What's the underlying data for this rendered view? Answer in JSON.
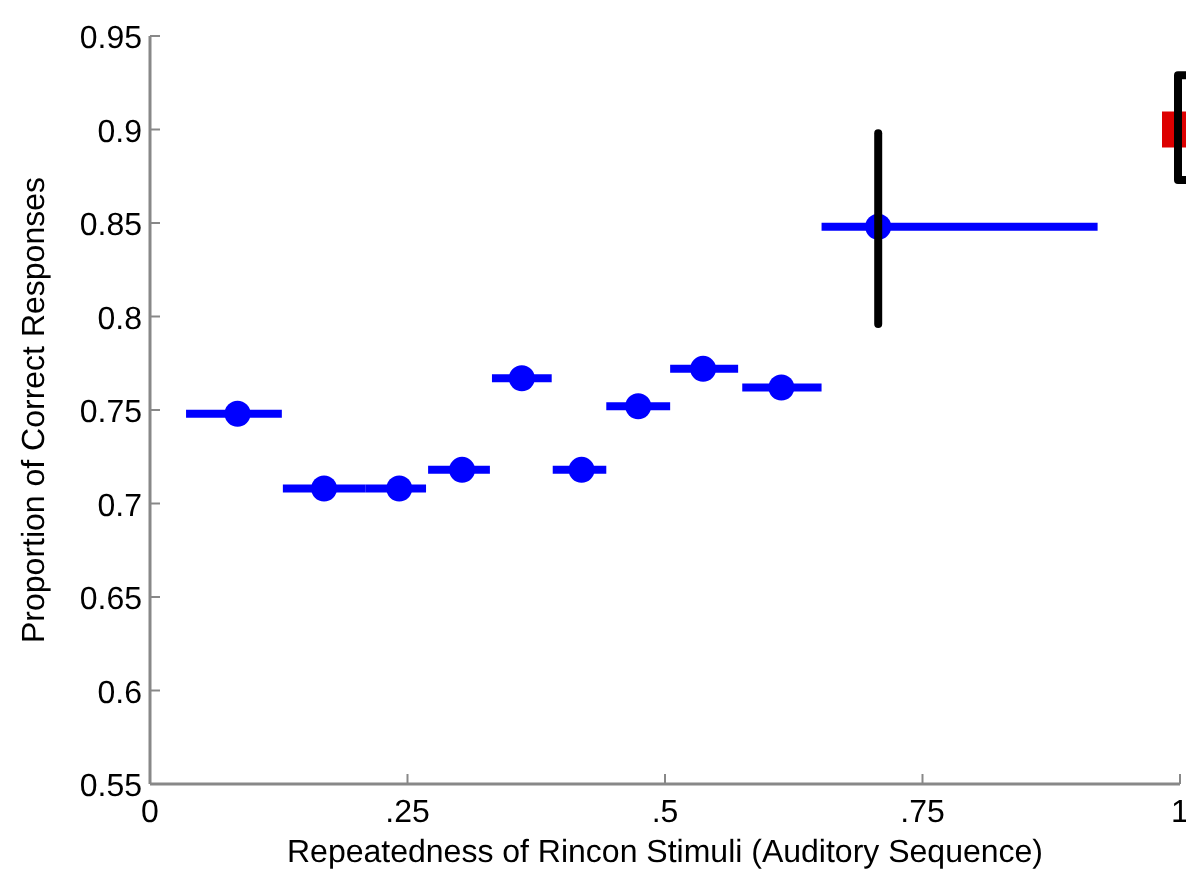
{
  "chart_data": {
    "type": "scatter",
    "xlabel": "Repeatedness of Rincon Stimuli (Auditory Sequence)",
    "ylabel": "Proportion of Correct Responses",
    "xlim": [
      0,
      1
    ],
    "xticks": [
      0,
      {
        "value": 0.25,
        "label": ".25"
      },
      {
        "value": 0.5,
        "label": ".5"
      },
      {
        "value": 0.75,
        "label": ".75"
      },
      1
    ],
    "ylim": [
      0.55,
      0.95
    ],
    "yticks": [
      0.55,
      0.6,
      0.65,
      0.7,
      0.75,
      0.8,
      0.85,
      0.9,
      0.95
    ],
    "grid": false,
    "series": [
      {
        "color": "#0000ff",
        "marker": "circle",
        "x": [
          0.085,
          0.169,
          0.242,
          0.303,
          0.361,
          0.419,
          0.474,
          0.537,
          0.613,
          0.707
        ],
        "values": [
          0.748,
          0.708,
          0.708,
          0.718,
          0.767,
          0.718,
          0.752,
          0.772,
          0.762,
          0.848
        ],
        "xerrors": [
          [
            0.035,
            0.128
          ],
          [
            0.129,
            0.209
          ],
          [
            0.209,
            0.268
          ],
          [
            0.27,
            0.33
          ],
          [
            0.332,
            0.39
          ],
          [
            0.391,
            0.443
          ],
          [
            0.443,
            0.505
          ],
          [
            0.505,
            0.571
          ],
          [
            0.575,
            0.652
          ],
          [
            0.652,
            0.92
          ]
        ],
        "errors": [
          null,
          null,
          null,
          null,
          null,
          null,
          null,
          null,
          null,
          [
            0.796,
            0.898
          ]
        ]
      },
      {
        "color": "#dd0000",
        "marker": "square",
        "x": [
          1
        ],
        "values": [
          0.9
        ],
        "errors": [
          [
            0.873,
            0.929
          ]
        ]
      }
    ]
  }
}
